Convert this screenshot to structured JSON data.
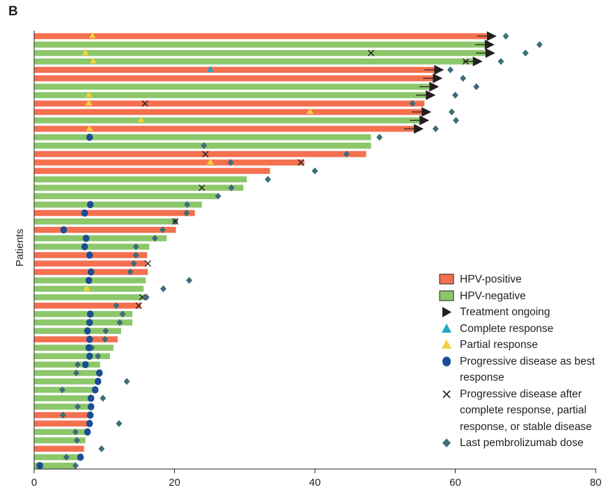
{
  "panel_label": "B",
  "colors": {
    "hpv_positive": "#f4704f",
    "hpv_negative": "#8cc76a",
    "ongoing": "#231f20",
    "complete": "#1fa8c4",
    "partial": "#f3d03e",
    "progressive": "#1a4d94",
    "pd_after": "#231f20",
    "last_dose": "#3e6e78"
  },
  "chart_data": {
    "type": "swimmer",
    "xlabel": "",
    "ylabel": "Patients",
    "xlim": [
      0,
      80
    ],
    "xticks": [
      "0",
      "20",
      "40",
      "60",
      "80"
    ],
    "legend_position": "bottom-right",
    "legend": [
      {
        "key": "hpv_positive",
        "label": "HPV-positive"
      },
      {
        "key": "hpv_negative",
        "label": "HPV-negative"
      },
      {
        "key": "ongoing",
        "label": "Treatment ongoing"
      },
      {
        "key": "complete",
        "label": "Complete response"
      },
      {
        "key": "partial",
        "label": "Partial response"
      },
      {
        "key": "progressive",
        "label": "Progressive disease as best response"
      },
      {
        "key": "pd_after",
        "label": "Progressive disease after complete response, partial response, or stable disease"
      },
      {
        "key": "last_dose",
        "label": "Last pembrolizumab dose"
      }
    ],
    "patients": [
      {
        "hpv": "positive",
        "duration": 64.5,
        "ongoing": true,
        "response": "partial",
        "response_time": 8.3,
        "last_dose": 67.2
      },
      {
        "hpv": "negative",
        "duration": 64.2,
        "ongoing": true,
        "last_dose": 72.0
      },
      {
        "hpv": "negative",
        "duration": 64.3,
        "ongoing": true,
        "response": "partial",
        "response_time": 7.3,
        "pd_after": 48.0,
        "last_dose": 70.0
      },
      {
        "hpv": "negative",
        "duration": 62.5,
        "ongoing": true,
        "response": "partial",
        "response_time": 8.4,
        "pd_after": 61.5,
        "last_dose": 66.5
      },
      {
        "hpv": "positive",
        "duration": 57.0,
        "ongoing": true,
        "response": "complete",
        "response_time": 25.1,
        "last_dose": 59.3
      },
      {
        "hpv": "positive",
        "duration": 56.8,
        "ongoing": true,
        "last_dose": 61.1
      },
      {
        "hpv": "negative",
        "duration": 56.3,
        "ongoing": true,
        "last_dose": 63.0
      },
      {
        "hpv": "negative",
        "duration": 55.8,
        "ongoing": true,
        "response": "partial",
        "response_time": 7.8,
        "last_dose": 60.0
      },
      {
        "hpv": "positive",
        "duration": 55.6,
        "response": "partial",
        "response_time": 7.8,
        "pd_after": 15.8,
        "last_dose": 53.9
      },
      {
        "hpv": "positive",
        "duration": 55.2,
        "ongoing": true,
        "response": "partial",
        "response_time": 39.3,
        "last_dose": 59.5
      },
      {
        "hpv": "negative",
        "duration": 54.9,
        "ongoing": true,
        "response": "partial",
        "response_time": 15.2,
        "last_dose": 60.1
      },
      {
        "hpv": "positive",
        "duration": 54.1,
        "ongoing": true,
        "response": "partial",
        "response_time": 7.9,
        "last_dose": 57.2
      },
      {
        "hpv": "negative",
        "duration": 48.0,
        "progressive": 7.9,
        "last_dose": 49.2
      },
      {
        "hpv": "negative",
        "duration": 48.0,
        "last_dose": 24.2
      },
      {
        "hpv": "positive",
        "duration": 47.3,
        "pd_after": 24.4,
        "last_dose": 44.5
      },
      {
        "hpv": "positive",
        "duration": 38.5,
        "response": "partial",
        "response_time": 25.1,
        "pd_after": 38.0,
        "last_dose": 28.0
      },
      {
        "hpv": "positive",
        "duration": 33.6,
        "last_dose": 40.0
      },
      {
        "hpv": "negative",
        "duration": 30.3,
        "last_dose": 33.3
      },
      {
        "hpv": "negative",
        "duration": 29.8,
        "pd_after": 23.9,
        "last_dose": 28.1
      },
      {
        "hpv": "negative",
        "duration": 26.0,
        "last_dose": 26.2
      },
      {
        "hpv": "negative",
        "duration": 23.9,
        "progressive": 8.0,
        "last_dose": 21.8
      },
      {
        "hpv": "positive",
        "duration": 22.9,
        "progressive": 7.2,
        "last_dose": 21.7
      },
      {
        "hpv": "negative",
        "duration": 20.4,
        "pd_after": 20.1,
        "last_dose": 20.1
      },
      {
        "hpv": "positive",
        "duration": 20.2,
        "progressive": 4.2,
        "last_dose": 18.3
      },
      {
        "hpv": "negative",
        "duration": 18.9,
        "progressive": 7.4,
        "last_dose": 17.2
      },
      {
        "hpv": "negative",
        "duration": 16.4,
        "progressive": 7.2,
        "last_dose": 14.5
      },
      {
        "hpv": "positive",
        "duration": 16.1,
        "progressive": 7.9,
        "last_dose": 14.5
      },
      {
        "hpv": "positive",
        "duration": 16.0,
        "pd_after": 16.2,
        "last_dose": 14.2
      },
      {
        "hpv": "positive",
        "duration": 16.2,
        "progressive": 8.1,
        "last_dose": 13.7
      },
      {
        "hpv": "negative",
        "duration": 15.9,
        "progressive": 7.8,
        "last_dose": 22.1
      },
      {
        "hpv": "negative",
        "duration": 15.6,
        "response": "partial",
        "response_time": 7.5,
        "last_dose": 18.4
      },
      {
        "hpv": "negative",
        "duration": 15.5,
        "pd_after": 15.4,
        "last_dose": 16.0
      },
      {
        "hpv": "positive",
        "duration": 15.2,
        "pd_after": 14.9,
        "last_dose": 11.7
      },
      {
        "hpv": "negative",
        "duration": 14.0,
        "progressive": 8.0,
        "last_dose": 12.6
      },
      {
        "hpv": "negative",
        "duration": 14.0,
        "progressive": 7.9,
        "last_dose": 12.2
      },
      {
        "hpv": "negative",
        "duration": 12.4,
        "progressive": 7.6,
        "last_dose": 10.2
      },
      {
        "hpv": "positive",
        "duration": 11.9,
        "progressive": 7.9,
        "last_dose": 10.1
      },
      {
        "hpv": "negative",
        "duration": 11.3,
        "progressive": 7.8,
        "last_dose": 8.2
      },
      {
        "hpv": "negative",
        "duration": 10.8,
        "progressive": 7.9,
        "last_dose": 9.1
      },
      {
        "hpv": "negative",
        "duration": 9.4,
        "progressive": 7.3,
        "last_dose": 6.2
      },
      {
        "hpv": "negative",
        "duration": 9.0,
        "progressive": 9.3,
        "last_dose": 6.0
      },
      {
        "hpv": "negative",
        "duration": 8.8,
        "progressive": 9.1,
        "last_dose": 13.2
      },
      {
        "hpv": "negative",
        "duration": 8.6,
        "progressive": 8.7,
        "last_dose": 4.0
      },
      {
        "hpv": "negative",
        "duration": 8.2,
        "progressive": 8.1,
        "last_dose": 9.8
      },
      {
        "hpv": "negative",
        "duration": 8.0,
        "progressive": 8.1,
        "last_dose": 6.2
      },
      {
        "hpv": "positive",
        "duration": 7.9,
        "progressive": 8.0,
        "last_dose": 4.1
      },
      {
        "hpv": "positive",
        "duration": 7.8,
        "progressive": 7.9,
        "last_dose": 12.1
      },
      {
        "hpv": "negative",
        "duration": 7.7,
        "progressive": 7.6,
        "last_dose": 5.9
      },
      {
        "hpv": "negative",
        "duration": 7.3,
        "last_dose": 6.1
      },
      {
        "hpv": "positive",
        "duration": 7.1,
        "last_dose": 9.6
      },
      {
        "hpv": "negative",
        "duration": 6.9,
        "progressive": 6.6,
        "last_dose": 4.6
      },
      {
        "hpv": "negative",
        "duration": 6.0,
        "progressive": 0.8,
        "last_dose": 5.9
      }
    ]
  }
}
